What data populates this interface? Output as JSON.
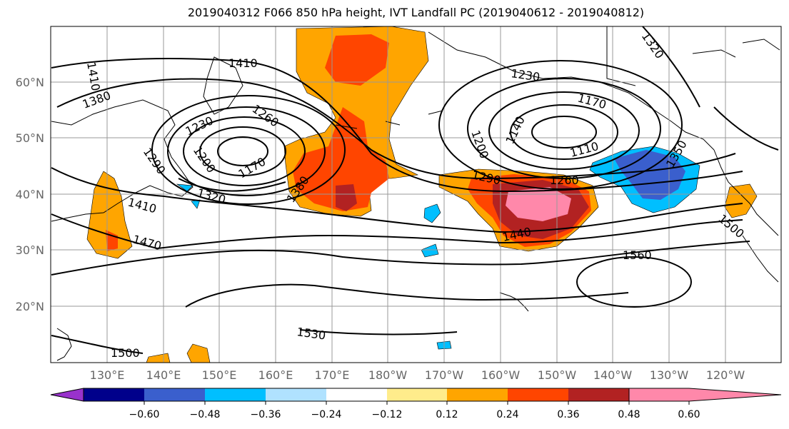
{
  "title": "2019040312 F066 850 hPa height, IVT Landfall PC (2019040612 - 2019040812)",
  "lat_labels": [
    "60°N",
    "50°N",
    "40°N",
    "30°N",
    "20°N"
  ],
  "lon_labels": [
    "130°E",
    "140°E",
    "150°E",
    "160°E",
    "170°E",
    "180°W",
    "170°W",
    "160°W",
    "150°W",
    "140°W",
    "130°W",
    "120°W"
  ],
  "contour_labels": [
    "1410",
    "1410",
    "1380",
    "1230",
    "1260",
    "1200",
    "1290",
    "1170",
    "1320",
    "1410",
    "1470",
    "1380",
    "1230",
    "1170",
    "1140",
    "1200",
    "1110",
    "1290",
    "1260",
    "1440",
    "1350",
    "1320",
    "1560",
    "1530",
    "1500",
    "1500"
  ],
  "colorbar": {
    "ticks": [
      "−0.60",
      "−0.48",
      "−0.36",
      "−0.24",
      "−0.12",
      "0.12",
      "0.24",
      "0.36",
      "0.48",
      "0.60"
    ],
    "colors": [
      "#9932cc",
      "#00008b",
      "#3a5fcd",
      "#00bfff",
      "#b0e2ff",
      "#ffffff",
      "#ffec8b",
      "#ffa500",
      "#ff4500",
      "#b22222",
      "#ff88aa"
    ]
  }
}
